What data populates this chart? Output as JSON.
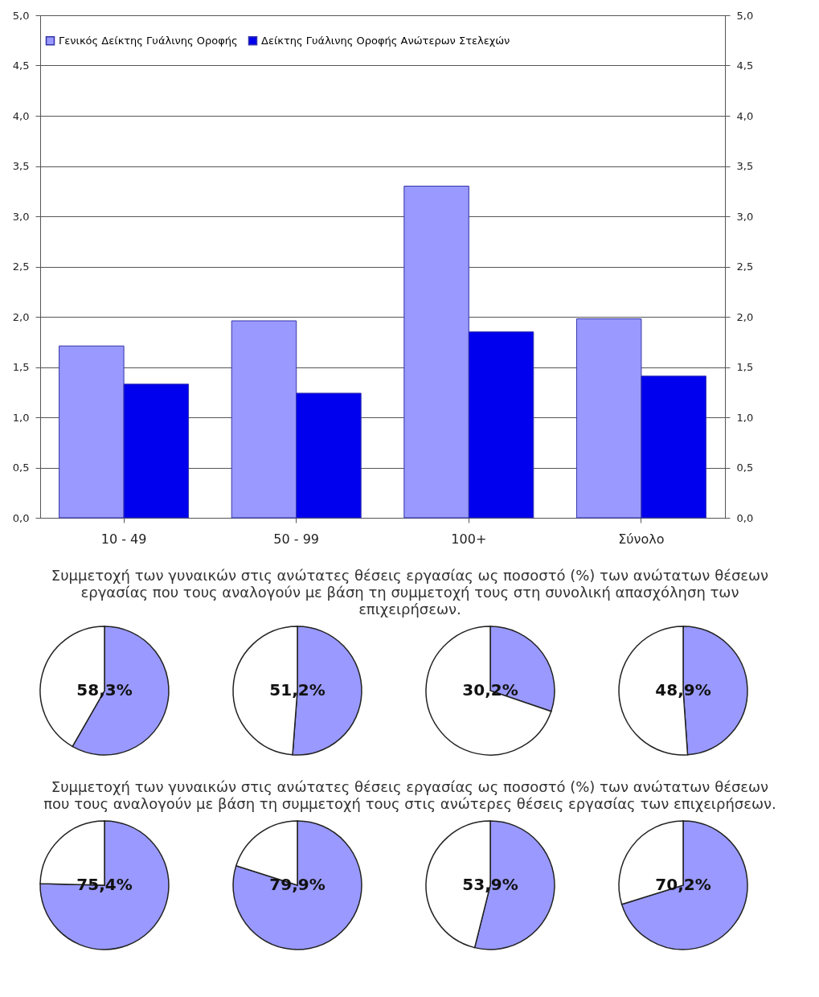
{
  "chart_data": [
    {
      "type": "bar",
      "categories": [
        "10 - 49",
        "50 - 99",
        "100+",
        "Σύνολο"
      ],
      "series": [
        {
          "name": "Γενικός Δείκτης Γυάλινης Οροφής",
          "color": "#9999ff",
          "values": [
            1.71,
            1.96,
            3.3,
            1.98
          ]
        },
        {
          "name": "Δείκτης Γυάλινης Οροφής Ανώτερων Στελεχών",
          "color": "#0000ee",
          "values": [
            1.33,
            1.24,
            1.85,
            1.41
          ]
        }
      ],
      "ylim": [
        0,
        5
      ],
      "yticks": [
        {
          "value": 0,
          "label": "0,0"
        },
        {
          "value": 0.5,
          "label": "0,5"
        },
        {
          "value": 1,
          "label": "1,0"
        },
        {
          "value": 1.5,
          "label": "1,5"
        },
        {
          "value": 2,
          "label": "2,0"
        },
        {
          "value": 2.5,
          "label": "2,5"
        },
        {
          "value": 3,
          "label": "3,0"
        },
        {
          "value": 3.5,
          "label": "3,5"
        },
        {
          "value": 4,
          "label": "4,0"
        },
        {
          "value": 4.5,
          "label": "4,5"
        },
        {
          "value": 5,
          "label": "5,0"
        }
      ],
      "y2lim": [
        0,
        5
      ],
      "y2ticks": [
        {
          "value": 0,
          "label": "0,0"
        },
        {
          "value": 0.5,
          "label": "0,5"
        },
        {
          "value": 1,
          "label": "1,0"
        },
        {
          "value": 1.5,
          "label": "1,5"
        },
        {
          "value": 2,
          "label": "2,0"
        },
        {
          "value": 2.5,
          "label": "2,5"
        },
        {
          "value": 3,
          "label": "3,0"
        },
        {
          "value": 3.5,
          "label": "3,5"
        },
        {
          "value": 4,
          "label": "4,0"
        },
        {
          "value": 4.5,
          "label": "4,5"
        },
        {
          "value": 5,
          "label": "5,0"
        }
      ],
      "grid": "y",
      "legend": "top"
    },
    {
      "type": "pie",
      "title": "Συμμετοχή των γυναικών στις ανώτατες θέσεις εργασίας ως ποσοστό (%) των ανώτατων θέσεων εργασίας που τους αναλογούν με βάση τη συμμετοχή τους στη συνολική απασχόληση των επιχειρήσεων.",
      "categories": [
        null,
        null
      ],
      "values": [
        58.3,
        41.7
      ],
      "colors": [
        "#9999ff",
        "#ffffff"
      ],
      "value_labels": [
        "58,3%",
        null
      ]
    },
    {
      "type": "pie",
      "categories": [
        null,
        null
      ],
      "values": [
        51.2,
        48.8
      ],
      "colors": [
        "#9999ff",
        "#ffffff"
      ],
      "value_labels": [
        "51,2%",
        null
      ]
    },
    {
      "type": "pie",
      "categories": [
        null,
        null
      ],
      "values": [
        30.2,
        69.8
      ],
      "colors": [
        "#9999ff",
        "#ffffff"
      ],
      "value_labels": [
        "30,2%",
        null
      ]
    },
    {
      "type": "pie",
      "categories": [
        null,
        null
      ],
      "values": [
        48.9,
        51.1
      ],
      "colors": [
        "#9999ff",
        "#ffffff"
      ],
      "value_labels": [
        "48,9%",
        null
      ]
    },
    {
      "type": "pie",
      "title": "Συμμετοχή των γυναικών στις ανώτατες θέσεις εργασίας ως ποσοστό (%) των ανώτατων θέσεων που τους αναλογούν με βάση τη συμμετοχή τους στις ανώτερες θέσεις εργασίας των επιχειρήσεων.",
      "categories": [
        null,
        null
      ],
      "values": [
        75.4,
        24.6
      ],
      "colors": [
        "#9999ff",
        "#ffffff"
      ],
      "value_labels": [
        "75,4%",
        null
      ]
    },
    {
      "type": "pie",
      "categories": [
        null,
        null
      ],
      "values": [
        79.9,
        20.1
      ],
      "colors": [
        "#9999ff",
        "#ffffff"
      ],
      "value_labels": [
        "79,9%",
        null
      ]
    },
    {
      "type": "pie",
      "categories": [
        null,
        null
      ],
      "values": [
        53.9,
        46.1
      ],
      "colors": [
        "#9999ff",
        "#ffffff"
      ],
      "value_labels": [
        "53,9%",
        null
      ]
    },
    {
      "type": "pie",
      "categories": [
        null,
        null
      ],
      "values": [
        70.2,
        29.8
      ],
      "colors": [
        "#9999ff",
        "#ffffff"
      ],
      "value_labels": [
        "70,2%",
        null
      ]
    }
  ]
}
